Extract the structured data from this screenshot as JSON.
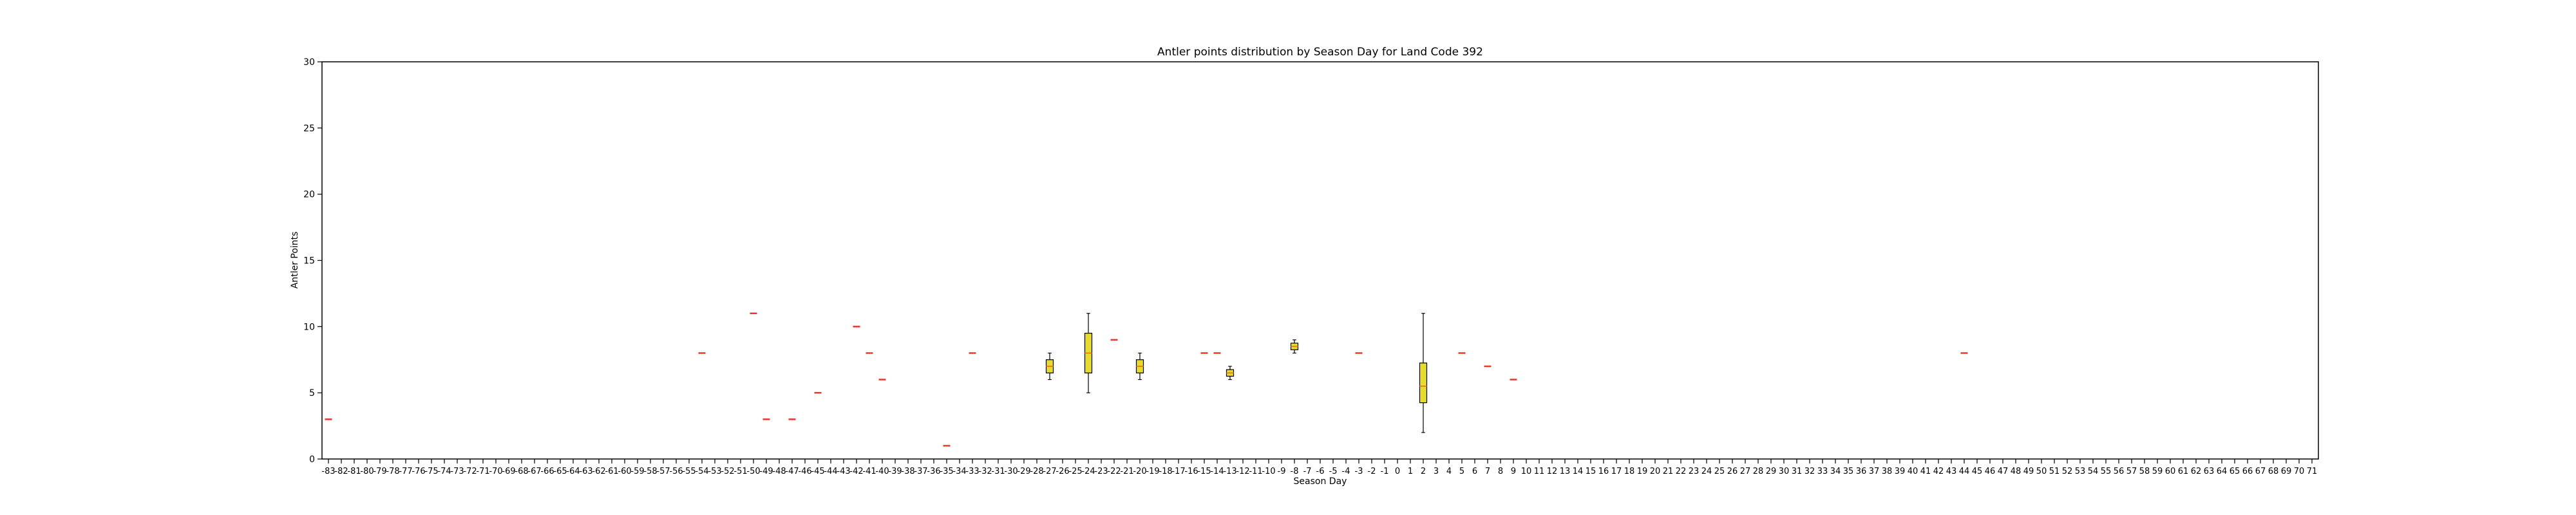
{
  "chart_data": {
    "type": "box",
    "title": "Antler points distribution by Season Day for Land Code 392",
    "xlabel": "Season Day",
    "ylabel": "Antler Points",
    "x_categories": [
      -83,
      -82,
      -81,
      -80,
      -79,
      -78,
      -77,
      -76,
      -75,
      -74,
      -73,
      -72,
      -71,
      -70,
      -69,
      -68,
      -67,
      -66,
      -65,
      -64,
      -63,
      -62,
      -61,
      -60,
      -59,
      -58,
      -57,
      -56,
      -55,
      -54,
      -53,
      -52,
      -51,
      -50,
      -49,
      -48,
      -47,
      -46,
      -45,
      -44,
      -43,
      -42,
      -41,
      -40,
      -39,
      -38,
      -37,
      -36,
      -35,
      -34,
      -33,
      -32,
      -31,
      -30,
      -29,
      -28,
      -27,
      -26,
      -25,
      -24,
      -23,
      -22,
      -21,
      -20,
      -19,
      -18,
      -17,
      -16,
      -15,
      -14,
      -13,
      -12,
      -11,
      -10,
      -9,
      -8,
      -7,
      -6,
      -5,
      -4,
      -3,
      -2,
      -1,
      0,
      1,
      2,
      3,
      4,
      5,
      6,
      7,
      8,
      9,
      10,
      11,
      12,
      13,
      14,
      15,
      16,
      17,
      18,
      19,
      20,
      21,
      22,
      23,
      24,
      25,
      26,
      27,
      28,
      29,
      30,
      31,
      32,
      33,
      34,
      35,
      36,
      37,
      38,
      39,
      40,
      41,
      42,
      43,
      44,
      45,
      46,
      47,
      48,
      49,
      50,
      51,
      52,
      53,
      54,
      55,
      56,
      57,
      58,
      59,
      60,
      61,
      62,
      63,
      64,
      65,
      66,
      67,
      68,
      69,
      70,
      71
    ],
    "ylim": [
      0,
      30
    ],
    "yticks": [
      0,
      5,
      10,
      15,
      20,
      25,
      30
    ],
    "grid": false,
    "box_color": "#e6dc2e",
    "median_color": "#e8821e",
    "single_color": "#e8372e",
    "boxes": [
      {
        "day": -83,
        "min": 3,
        "q1": 3,
        "median": 3,
        "q3": 3,
        "max": 3
      },
      {
        "day": -54,
        "min": 8,
        "q1": 8,
        "median": 8,
        "q3": 8,
        "max": 8
      },
      {
        "day": -50,
        "min": 11,
        "q1": 11,
        "median": 11,
        "q3": 11,
        "max": 11
      },
      {
        "day": -49,
        "min": 3,
        "q1": 3,
        "median": 3,
        "q3": 3,
        "max": 3
      },
      {
        "day": -47,
        "min": 3,
        "q1": 3,
        "median": 3,
        "q3": 3,
        "max": 3
      },
      {
        "day": -45,
        "min": 5,
        "q1": 5,
        "median": 5,
        "q3": 5,
        "max": 5
      },
      {
        "day": -42,
        "min": 10,
        "q1": 10,
        "median": 10,
        "q3": 10,
        "max": 10
      },
      {
        "day": -41,
        "min": 8,
        "q1": 8,
        "median": 8,
        "q3": 8,
        "max": 8
      },
      {
        "day": -40,
        "min": 6,
        "q1": 6,
        "median": 6,
        "q3": 6,
        "max": 6
      },
      {
        "day": -35,
        "min": 1,
        "q1": 1,
        "median": 1,
        "q3": 1,
        "max": 1
      },
      {
        "day": -33,
        "min": 8,
        "q1": 8,
        "median": 8,
        "q3": 8,
        "max": 8
      },
      {
        "day": -27,
        "min": 6,
        "q1": 6.5,
        "median": 7,
        "q3": 7.5,
        "max": 8
      },
      {
        "day": -24,
        "min": 5,
        "q1": 6.5,
        "median": 8,
        "q3": 9.5,
        "max": 11
      },
      {
        "day": -22,
        "min": 9,
        "q1": 9,
        "median": 9,
        "q3": 9,
        "max": 9
      },
      {
        "day": -20,
        "min": 6,
        "q1": 6.5,
        "median": 7,
        "q3": 7.5,
        "max": 8
      },
      {
        "day": -15,
        "min": 8,
        "q1": 8,
        "median": 8,
        "q3": 8,
        "max": 8
      },
      {
        "day": -14,
        "min": 8,
        "q1": 8,
        "median": 8,
        "q3": 8,
        "max": 8
      },
      {
        "day": -13,
        "min": 6,
        "q1": 6.25,
        "median": 6.5,
        "q3": 6.75,
        "max": 7
      },
      {
        "day": -8,
        "min": 8,
        "q1": 8.25,
        "median": 8.5,
        "q3": 8.75,
        "max": 9
      },
      {
        "day": -3,
        "min": 8,
        "q1": 8,
        "median": 8,
        "q3": 8,
        "max": 8
      },
      {
        "day": 2,
        "min": 2,
        "q1": 4.25,
        "median": 5.5,
        "q3": 7.25,
        "max": 11
      },
      {
        "day": 5,
        "min": 8,
        "q1": 8,
        "median": 8,
        "q3": 8,
        "max": 8
      },
      {
        "day": 7,
        "min": 7,
        "q1": 7,
        "median": 7,
        "q3": 7,
        "max": 7
      },
      {
        "day": 9,
        "min": 6,
        "q1": 6,
        "median": 6,
        "q3": 6,
        "max": 6
      },
      {
        "day": 44,
        "min": 8,
        "q1": 8,
        "median": 8,
        "q3": 8,
        "max": 8
      }
    ]
  }
}
